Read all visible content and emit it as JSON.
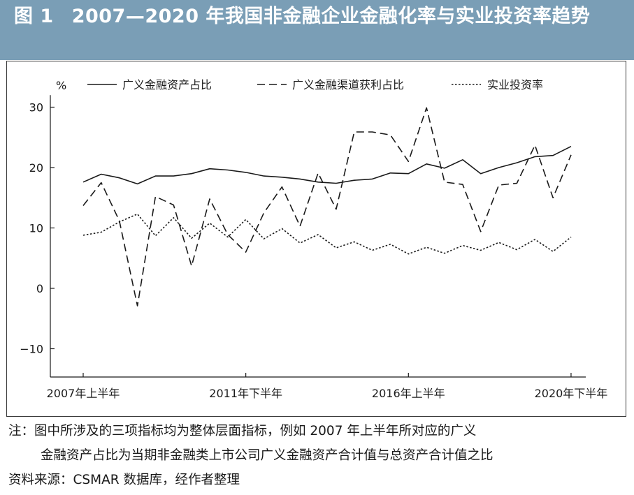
{
  "figure": {
    "number": "图 1",
    "title": "2007—2020 年我国非金融企业金融化率与实业投资率趋势"
  },
  "notes": {
    "line1": "注：图中所涉及的三项指标均为整体层面指标，例如 2007 年上半年所对应的广义",
    "line2": "金融资产占比为当期非金融类上市公司广义金融资产合计值与总资产合计值之比",
    "source": "资料来源：CSMAR 数据库，经作者整理"
  },
  "colors": {
    "title_bg": "#7a9eb6",
    "title_text": "#ffffff",
    "line": "#1a1a1a"
  },
  "chart_data": {
    "type": "line",
    "ylabel": "%",
    "ylim": [
      -13,
      32
    ],
    "yticks": [
      -10,
      0,
      10,
      20,
      30
    ],
    "x": [
      "2007H1",
      "2007H2",
      "2008H1",
      "2008H2",
      "2009H1",
      "2009H2",
      "2010H1",
      "2010H2",
      "2011H1",
      "2011H2",
      "2012H1",
      "2012H2",
      "2013H1",
      "2013H2",
      "2014H1",
      "2014H2",
      "2015H1",
      "2015H2",
      "2016H1",
      "2016H2",
      "2017H1",
      "2017H2",
      "2018H1",
      "2018H2",
      "2019H1",
      "2019H2",
      "2020H1",
      "2020H2"
    ],
    "xticks": [
      {
        "index": 0,
        "label": "2007年上半年"
      },
      {
        "index": 9,
        "label": "2011年下半年"
      },
      {
        "index": 18,
        "label": "2016年上半年"
      },
      {
        "index": 27,
        "label": "2020年下半年"
      }
    ],
    "legend_position": "top",
    "grid": false,
    "series": [
      {
        "name": "广义金融资产占比",
        "style": "solid",
        "values": [
          17.6,
          18.9,
          18.3,
          17.3,
          18.6,
          18.6,
          19.0,
          19.8,
          19.6,
          19.2,
          18.6,
          18.4,
          18.1,
          17.6,
          17.4,
          17.9,
          18.1,
          19.1,
          19.0,
          20.6,
          19.9,
          21.3,
          19.0,
          20.0,
          20.8,
          21.8,
          22.0,
          23.5
        ]
      },
      {
        "name": "广义金融渠道获利占比",
        "style": "dashed",
        "values": [
          13.7,
          17.5,
          11.2,
          -2.9,
          15.2,
          13.8,
          3.7,
          14.8,
          8.9,
          6.0,
          12.5,
          16.8,
          10.3,
          19.1,
          13.1,
          25.9,
          25.9,
          25.4,
          21.0,
          29.9,
          17.6,
          17.2,
          9.4,
          17.1,
          17.4,
          23.7,
          15.0,
          22.1
        ]
      },
      {
        "name": "实业投资率",
        "style": "dotted",
        "values": [
          8.8,
          9.3,
          11.0,
          12.3,
          8.7,
          11.7,
          8.3,
          10.8,
          8.5,
          11.4,
          8.2,
          9.9,
          7.5,
          8.9,
          6.7,
          7.7,
          6.3,
          7.3,
          5.7,
          6.8,
          5.8,
          7.1,
          6.3,
          7.6,
          6.4,
          8.1,
          6.1,
          8.5
        ]
      }
    ]
  }
}
